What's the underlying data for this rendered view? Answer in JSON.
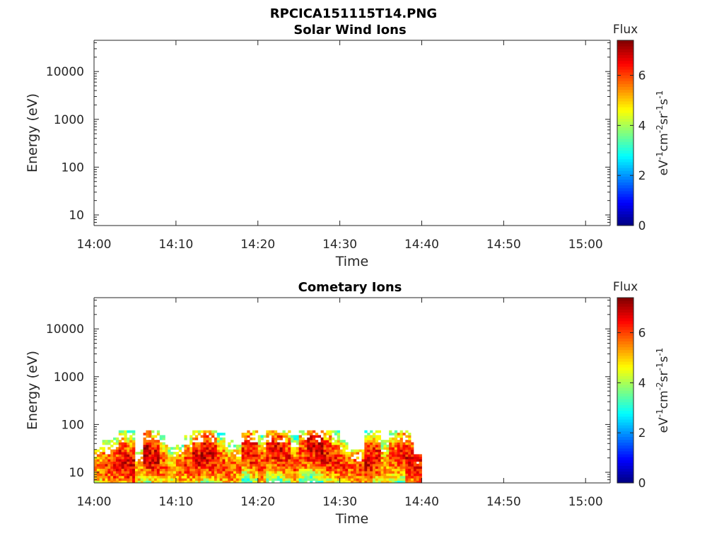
{
  "figure_title": "RPCICA151115T14.PNG",
  "chart_data": [
    {
      "type": "heatmap",
      "title": "Solar Wind Ions",
      "xlabel": "Time",
      "ylabel": "Energy (eV)",
      "x_ticks": [
        "14:00",
        "14:10",
        "14:20",
        "14:30",
        "14:40",
        "14:50",
        "15:00"
      ],
      "xlim": [
        "14:00",
        "15:03"
      ],
      "y_ticks": [
        10,
        100,
        1000,
        10000
      ],
      "ylim": [
        6,
        45000
      ],
      "yscale": "log",
      "colorbar": {
        "title": "Flux",
        "label": "eV-1cm-2sr-1s-1",
        "ticks": [
          0,
          2,
          4,
          6
        ],
        "range": [
          0,
          7.4
        ],
        "colormap": "jet"
      },
      "segments": []
    },
    {
      "type": "heatmap",
      "title": "Cometary Ions",
      "xlabel": "Time",
      "ylabel": "Energy (eV)",
      "x_ticks": [
        "14:00",
        "14:10",
        "14:20",
        "14:30",
        "14:40",
        "14:50",
        "15:00"
      ],
      "xlim": [
        "14:00",
        "15:03"
      ],
      "y_ticks": [
        10,
        100,
        1000,
        10000
      ],
      "ylim": [
        6,
        45000
      ],
      "yscale": "log",
      "colorbar": {
        "title": "Flux",
        "label": "eV-1cm-2sr-1s-1",
        "ticks": [
          0,
          2,
          4,
          6
        ],
        "range": [
          0,
          7.4
        ],
        "colormap": "jet"
      },
      "segments": [
        {
          "t0": "14:00",
          "t1": "14:01",
          "emax": 35,
          "peak_e": 14,
          "peak_flux": 5.5
        },
        {
          "t0": "14:01",
          "t1": "14:02",
          "emax": 45,
          "peak_e": 14,
          "peak_flux": 6.0
        },
        {
          "t0": "14:02",
          "t1": "14:03",
          "emax": 55,
          "peak_e": 14,
          "peak_flux": 6.2
        },
        {
          "t0": "14:03",
          "t1": "14:04",
          "emax": 80,
          "peak_e": 18,
          "peak_flux": 6.5
        },
        {
          "t0": "14:04",
          "t1": "14:05",
          "emax": 80,
          "peak_e": 14,
          "peak_flux": 6.6
        },
        {
          "t0": "14:05",
          "t1": "14:06",
          "emax": 30,
          "peak_e": 12,
          "peak_flux": 5.2
        },
        {
          "t0": "14:06",
          "t1": "14:07",
          "emax": 80,
          "peak_e": 25,
          "peak_flux": 6.8
        },
        {
          "t0": "14:07",
          "t1": "14:08",
          "emax": 80,
          "peak_e": 20,
          "peak_flux": 6.7
        },
        {
          "t0": "14:08",
          "t1": "14:09",
          "emax": 60,
          "peak_e": 15,
          "peak_flux": 5.8
        },
        {
          "t0": "14:09",
          "t1": "14:10",
          "emax": 35,
          "peak_e": 12,
          "peak_flux": 5.0
        },
        {
          "t0": "14:10",
          "t1": "14:11",
          "emax": 40,
          "peak_e": 12,
          "peak_flux": 5.6
        },
        {
          "t0": "14:11",
          "t1": "14:12",
          "emax": 60,
          "peak_e": 16,
          "peak_flux": 6.0
        },
        {
          "t0": "14:12",
          "t1": "14:13",
          "emax": 80,
          "peak_e": 20,
          "peak_flux": 6.5
        },
        {
          "t0": "14:13",
          "t1": "14:14",
          "emax": 80,
          "peak_e": 25,
          "peak_flux": 6.8
        },
        {
          "t0": "14:14",
          "t1": "14:15",
          "emax": 80,
          "peak_e": 22,
          "peak_flux": 6.6
        },
        {
          "t0": "14:15",
          "t1": "14:16",
          "emax": 70,
          "peak_e": 15,
          "peak_flux": 6.0
        },
        {
          "t0": "14:16",
          "t1": "14:17",
          "emax": 50,
          "peak_e": 12,
          "peak_flux": 5.8
        },
        {
          "t0": "14:17",
          "t1": "14:18",
          "emax": 40,
          "peak_e": 12,
          "peak_flux": 5.6
        },
        {
          "t0": "14:18",
          "t1": "14:19",
          "emax": 80,
          "peak_e": 30,
          "peak_flux": 6.2
        },
        {
          "t0": "14:19",
          "t1": "14:20",
          "emax": 80,
          "peak_e": 25,
          "peak_flux": 6.4
        },
        {
          "t0": "14:20",
          "t1": "14:21",
          "emax": 60,
          "peak_e": 15,
          "peak_flux": 6.0
        },
        {
          "t0": "14:21",
          "t1": "14:22",
          "emax": 80,
          "peak_e": 28,
          "peak_flux": 6.3
        },
        {
          "t0": "14:22",
          "t1": "14:23",
          "emax": 80,
          "peak_e": 30,
          "peak_flux": 6.5
        },
        {
          "t0": "14:23",
          "t1": "14:24",
          "emax": 80,
          "peak_e": 22,
          "peak_flux": 6.2
        },
        {
          "t0": "14:24",
          "t1": "14:25",
          "emax": 60,
          "peak_e": 14,
          "peak_flux": 5.8
        },
        {
          "t0": "14:25",
          "t1": "14:26",
          "emax": 80,
          "peak_e": 25,
          "peak_flux": 6.0
        },
        {
          "t0": "14:26",
          "t1": "14:27",
          "emax": 80,
          "peak_e": 35,
          "peak_flux": 6.6
        },
        {
          "t0": "14:27",
          "t1": "14:28",
          "emax": 80,
          "peak_e": 30,
          "peak_flux": 6.7
        },
        {
          "t0": "14:28",
          "t1": "14:29",
          "emax": 80,
          "peak_e": 22,
          "peak_flux": 6.4
        },
        {
          "t0": "14:29",
          "t1": "14:30",
          "emax": 75,
          "peak_e": 18,
          "peak_flux": 6.2
        },
        {
          "t0": "14:30",
          "t1": "14:31",
          "emax": 50,
          "peak_e": 14,
          "peak_flux": 6.0
        },
        {
          "t0": "14:31",
          "t1": "14:32",
          "emax": 30,
          "peak_e": 12,
          "peak_flux": 5.8
        },
        {
          "t0": "14:32",
          "t1": "14:33",
          "emax": 30,
          "peak_e": 13,
          "peak_flux": 6.0
        },
        {
          "t0": "14:33",
          "t1": "14:34",
          "emax": 80,
          "peak_e": 16,
          "peak_flux": 6.6
        },
        {
          "t0": "14:34",
          "t1": "14:35",
          "emax": 80,
          "peak_e": 20,
          "peak_flux": 6.4
        },
        {
          "t0": "14:35",
          "t1": "14:36",
          "emax": 50,
          "peak_e": 14,
          "peak_flux": 5.4
        },
        {
          "t0": "14:36",
          "t1": "14:37",
          "emax": 80,
          "peak_e": 20,
          "peak_flux": 6.0
        },
        {
          "t0": "14:37",
          "t1": "14:38",
          "emax": 80,
          "peak_e": 25,
          "peak_flux": 6.3
        },
        {
          "t0": "14:38",
          "t1": "14:39",
          "emax": 80,
          "peak_e": 18,
          "peak_flux": 6.6
        },
        {
          "t0": "14:39",
          "t1": "14:40",
          "emax": 25,
          "peak_e": 14,
          "peak_flux": 6.4
        }
      ]
    }
  ]
}
